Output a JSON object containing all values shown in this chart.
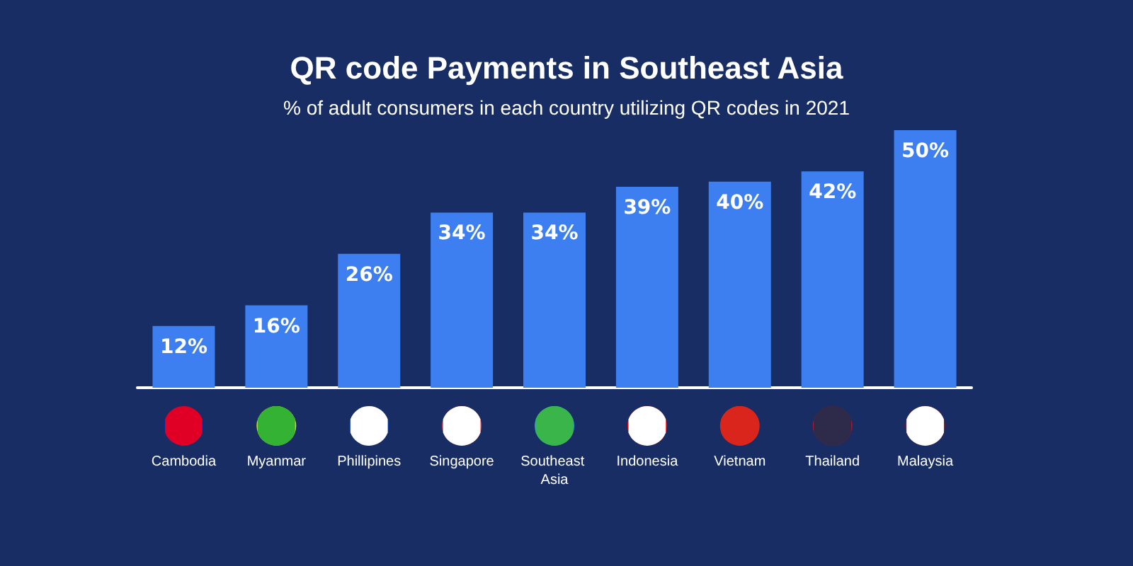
{
  "chart_data": {
    "type": "bar",
    "title": "QR code Payments in Southeast Asia",
    "subtitle": "% of adult consumers in each country utilizing QR codes in 2021",
    "categories": [
      "Cambodia",
      "Myanmar",
      "Phillipines",
      "Singapore",
      "Southeast Asia",
      "Indonesia",
      "Vietnam",
      "Thailand",
      "Malaysia"
    ],
    "values": [
      12,
      16,
      26,
      34,
      34,
      39,
      40,
      42,
      50
    ],
    "value_labels": [
      "12%",
      "16%",
      "26%",
      "34%",
      "34%",
      "39%",
      "40%",
      "42%",
      "50%"
    ],
    "color": "#3d7ff0",
    "grid": false
  }
}
